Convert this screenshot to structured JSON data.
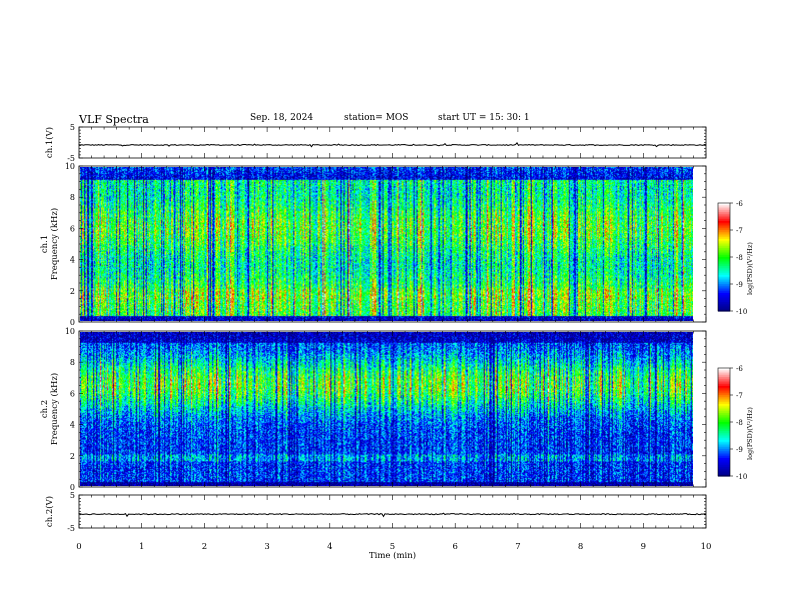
{
  "header": {
    "title": "VLF Spectra",
    "date": "Sep. 18, 2024",
    "station": "station= MOS",
    "start_ut": "start UT =   15: 30: 1"
  },
  "colors": {
    "colormap": [
      "#00007f",
      "#0000ff",
      "#00ffff",
      "#00ff00",
      "#ffff00",
      "#ff0000",
      "#ffffff"
    ],
    "trace": "#000000",
    "axis": "#000000"
  },
  "chart_data": [
    {
      "type": "line",
      "name": "waveform-ch1",
      "ylabel": "ch.1(V)",
      "ylim": [
        -5,
        5
      ],
      "yticks": [
        "5",
        "-5"
      ],
      "x": [
        0,
        10
      ],
      "values": [
        0,
        0
      ]
    },
    {
      "type": "heatmap",
      "name": "spectrogram-ch1",
      "ylabel": "ch.1\nFrequency (kHz)",
      "ylim": [
        0,
        10
      ],
      "yticks": [
        "0",
        "2",
        "4",
        "6",
        "8",
        "10"
      ],
      "xlim": [
        0,
        10
      ],
      "colorbar": {
        "label": "log(PSD)(V²/Hz)",
        "range": [
          -10,
          -6
        ],
        "ticks": [
          "-6",
          "-7",
          "-8",
          "-9",
          "-10"
        ]
      }
    },
    {
      "type": "heatmap",
      "name": "spectrogram-ch2",
      "ylabel": "ch.2\nFrequency (kHz)",
      "ylim": [
        0,
        10
      ],
      "yticks": [
        "0",
        "2",
        "4",
        "6",
        "8",
        "10"
      ],
      "xlim": [
        0,
        10
      ],
      "colorbar": {
        "label": "log(PSD)(V²/Hz)",
        "range": [
          -10,
          -6
        ],
        "ticks": [
          "-6",
          "-7",
          "-8",
          "-9",
          "-10"
        ]
      }
    },
    {
      "type": "line",
      "name": "waveform-ch2",
      "ylabel": "ch.2(V)",
      "ylim": [
        -5,
        5
      ],
      "yticks": [
        "5",
        "-5"
      ],
      "x": [
        0,
        10
      ],
      "values": [
        0,
        0
      ]
    }
  ],
  "x_axis": {
    "label": "Time (min)",
    "range": [
      0,
      10
    ],
    "ticks": [
      "0",
      "1",
      "2",
      "3",
      "4",
      "5",
      "6",
      "7",
      "8",
      "9",
      "10"
    ]
  }
}
